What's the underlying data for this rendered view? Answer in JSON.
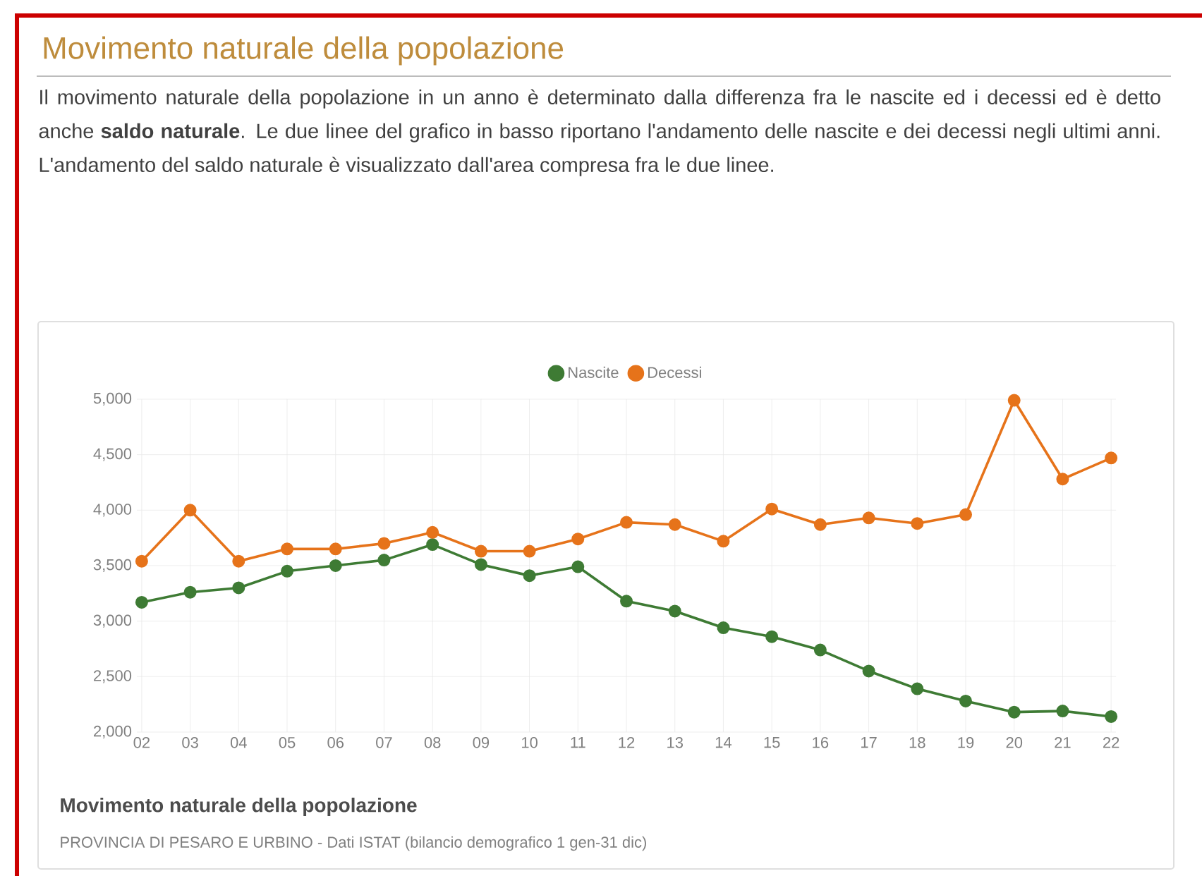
{
  "chart_data": {
    "type": "line",
    "title": "Movimento naturale della popolazione",
    "subtitle": "Il movimento naturale della popolazione in un anno è determinato dalla differenza fra le nascite ed i decessi ed è detto anche **saldo naturale**. Le due linee del grafico in basso riportano l'andamento delle nascite e dei decessi negli ultimi anni. L'andamento del saldo naturale è visualizzato dall'area compresa fra le due linee.",
    "categories": [
      "02",
      "03",
      "04",
      "05",
      "06",
      "07",
      "08",
      "09",
      "10",
      "11",
      "12",
      "13",
      "14",
      "15",
      "16",
      "17",
      "18",
      "19",
      "20",
      "21",
      "22"
    ],
    "series": [
      {
        "name": "Nascite",
        "color": "#3e7b34",
        "values": [
          3170,
          3260,
          3300,
          3450,
          3500,
          3550,
          3690,
          3510,
          3410,
          3490,
          3180,
          3090,
          2940,
          2860,
          2740,
          2550,
          2390,
          2280,
          2180,
          2190,
          2140
        ]
      },
      {
        "name": "Decessi",
        "color": "#e6731a",
        "values": [
          3540,
          4000,
          3540,
          3650,
          3650,
          3700,
          3800,
          3630,
          3630,
          3740,
          3890,
          3870,
          3720,
          4010,
          3870,
          3930,
          3880,
          3960,
          4990,
          4280,
          4470
        ]
      }
    ],
    "ylim": [
      2000,
      5000
    ],
    "yticks": [
      {
        "value": 2000,
        "label": "2,000"
      },
      {
        "value": 2500,
        "label": "2,500"
      },
      {
        "value": 3000,
        "label": "3,000"
      },
      {
        "value": 3500,
        "label": "3,500"
      },
      {
        "value": 4000,
        "label": "4,000"
      },
      {
        "value": 4500,
        "label": "4,500"
      },
      {
        "value": 5000,
        "label": "5,000"
      }
    ],
    "grid": true,
    "legend": "top",
    "marker": "circle",
    "line_style": "solid",
    "annotations": [
      "Movimento naturale della popolazione",
      "PROVINCIA DI PESARO E URBINO - Dati ISTAT (bilancio demografico 1 gen-31 dic)"
    ]
  }
}
